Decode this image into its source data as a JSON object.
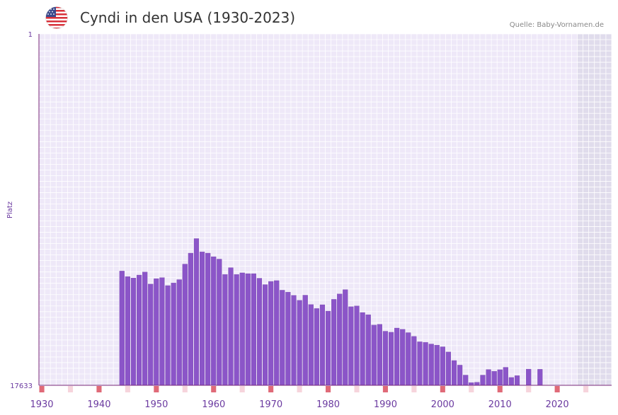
{
  "header": {
    "title": "Cyndi in den USA (1930-2023)",
    "source": "Quelle: Baby-Vornamen.de",
    "flag_icon": "us-flag-icon"
  },
  "colors": {
    "bar": "#8b55c8",
    "bar_stroke": "#6d3aa8",
    "plot_bg": "#eee8f8",
    "grid": "#ffffff",
    "future_band": "#e0dcec",
    "axis": "#7a2a7a",
    "marker_strong": "#e06a78",
    "marker_light": "#f6d4dc"
  },
  "chart_data": {
    "type": "bar",
    "title": "Cyndi in den USA (1930-2023)",
    "xlabel": "",
    "ylabel": "Platz",
    "y_top_label": "1",
    "y_bottom_label": "17633",
    "y_reversed": true,
    "ylim": [
      1,
      17633
    ],
    "xlim": [
      1930,
      2029
    ],
    "x_ticks": [
      1930,
      1940,
      1950,
      1960,
      1970,
      1980,
      1990,
      2000,
      2010,
      2020
    ],
    "x_tick_labels": [
      "1930",
      "1940",
      "1950",
      "1960",
      "1970",
      "1980",
      "1990",
      "2000",
      "2010",
      "2020"
    ],
    "shaded_from_year": 2024,
    "years": [
      1930,
      1931,
      1932,
      1933,
      1934,
      1935,
      1936,
      1937,
      1938,
      1939,
      1940,
      1941,
      1942,
      1943,
      1944,
      1945,
      1946,
      1947,
      1948,
      1949,
      1950,
      1951,
      1952,
      1953,
      1954,
      1955,
      1956,
      1957,
      1958,
      1959,
      1960,
      1961,
      1962,
      1963,
      1964,
      1965,
      1966,
      1967,
      1968,
      1969,
      1970,
      1971,
      1972,
      1973,
      1974,
      1975,
      1976,
      1977,
      1978,
      1979,
      1980,
      1981,
      1982,
      1983,
      1984,
      1985,
      1986,
      1987,
      1988,
      1989,
      1990,
      1991,
      1992,
      1993,
      1994,
      1995,
      1996,
      1997,
      1998,
      1999,
      2000,
      2001,
      2002,
      2003,
      2004,
      2005,
      2006,
      2007,
      2008,
      2009,
      2010,
      2011,
      2012,
      2013,
      2014,
      2015,
      2016,
      2017,
      2018,
      2019,
      2020,
      2021,
      2022,
      2023
    ],
    "ranks": [
      null,
      null,
      null,
      null,
      null,
      null,
      null,
      null,
      null,
      null,
      null,
      null,
      null,
      null,
      11900,
      12180,
      12250,
      12100,
      11950,
      12550,
      12280,
      12230,
      12630,
      12500,
      12330,
      11550,
      11000,
      10270,
      10940,
      11000,
      11180,
      11300,
      12070,
      11730,
      12070,
      11990,
      12030,
      12030,
      12260,
      12580,
      12420,
      12380,
      12860,
      12960,
      13120,
      13370,
      13110,
      13580,
      13780,
      13590,
      13910,
      13320,
      13050,
      12830,
      13690,
      13650,
      13980,
      14090,
      14610,
      14570,
      14920,
      14970,
      14760,
      14820,
      14990,
      15180,
      15450,
      15480,
      15560,
      15620,
      15700,
      15960,
      16390,
      16620,
      17120,
      17500,
      17480,
      17120,
      16840,
      16930,
      16850,
      16730,
      17240,
      17150,
      null,
      16820,
      null,
      16830,
      null,
      null,
      null,
      null,
      null,
      null
    ]
  }
}
